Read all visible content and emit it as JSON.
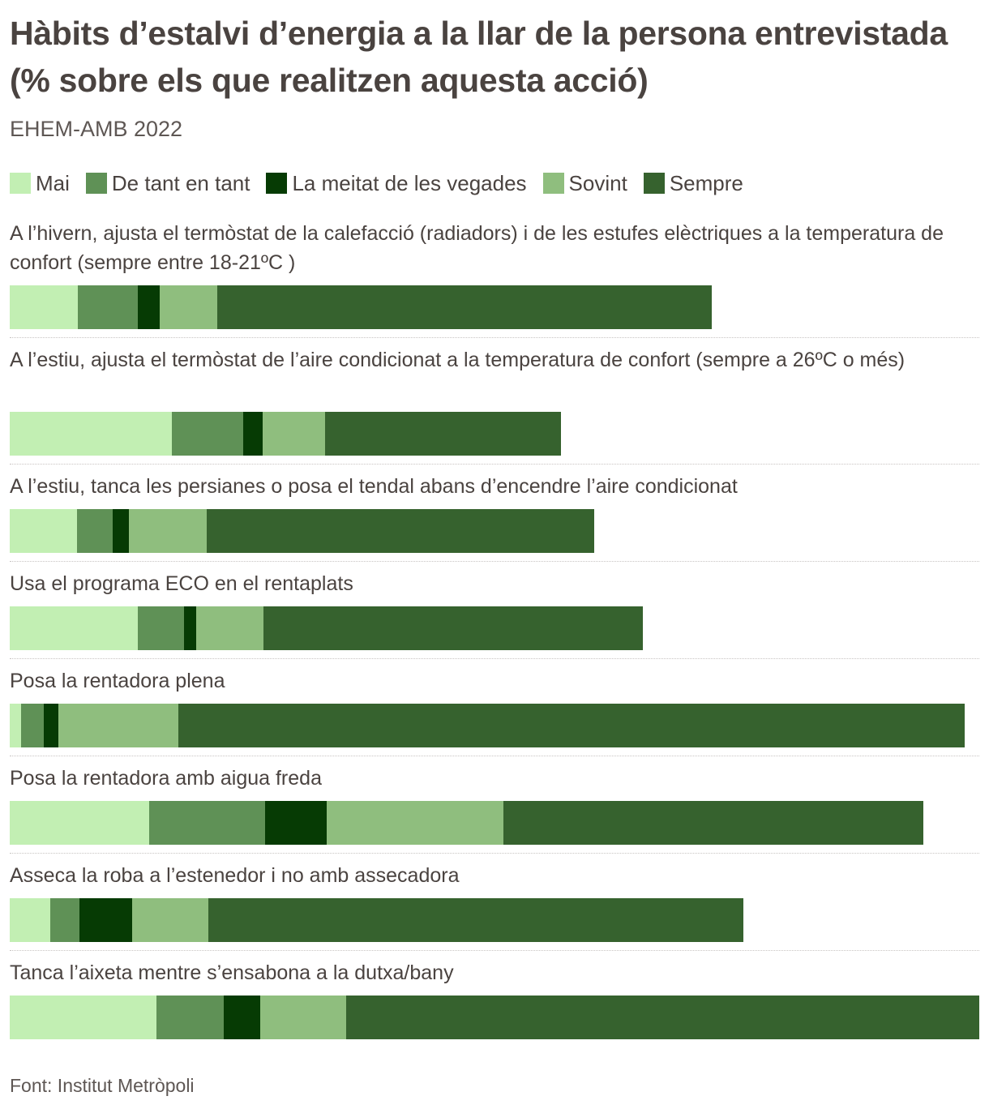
{
  "title": "Hàbits d’estalvi d’energia a la llar de la persona entrevistada (% sobre els que realitzen aquesta acció)",
  "subtitle": "EHEM-AMB 2022",
  "source": "Font: Institut Metròpoli",
  "chart_data": {
    "type": "bar",
    "orientation": "horizontal",
    "stacked": true,
    "xlim": [
      0,
      100
    ],
    "legend_position": "top-left",
    "grid": false,
    "categories": [
      "A l’hivern, ajusta el termòstat de la calefacció (radiadors) i de les estufes elèctriques a la temperatura de confort (sempre entre 18-21ºC )",
      "A l’estiu, ajusta el termòstat de l’aire condicionat a la temperatura de confort (sempre a 26ºC o més)",
      "A l’estiu, tanca les persianes o posa el tendal abans d’encendre l’aire condicionat",
      "Usa el programa ECO en el rentaplats",
      "Posa la rentadora plena",
      "Posa la rentadora amb aigua freda",
      "Asseca la roba a l’estenedor i no amb assecadora",
      "Tanca l’aixeta mentre s’ensabona a la dutxa/bany"
    ],
    "series": [
      {
        "name": "Mai",
        "color": "#c2efb3",
        "values": [
          7.0,
          16.7,
          6.9,
          13.2,
          1.2,
          14.4,
          4.2,
          15.1
        ]
      },
      {
        "name": "De tant en tant",
        "color": "#5f9156",
        "values": [
          6.2,
          7.4,
          3.7,
          4.8,
          2.3,
          11.9,
          3.0,
          7.0
        ]
      },
      {
        "name": "La meitat de les vegades",
        "color": "#063b04",
        "values": [
          2.3,
          2.0,
          1.7,
          1.2,
          1.5,
          6.4,
          5.4,
          3.7
        ]
      },
      {
        "name": "Sovint",
        "color": "#8fbe7e",
        "values": [
          5.9,
          6.4,
          8.0,
          7.0,
          12.4,
          18.2,
          7.9,
          8.9
        ]
      },
      {
        "name": "Sempre",
        "color": "#36622e",
        "values": [
          51.0,
          24.4,
          40.0,
          39.1,
          81.1,
          43.3,
          55.2,
          65.3
        ]
      }
    ]
  }
}
